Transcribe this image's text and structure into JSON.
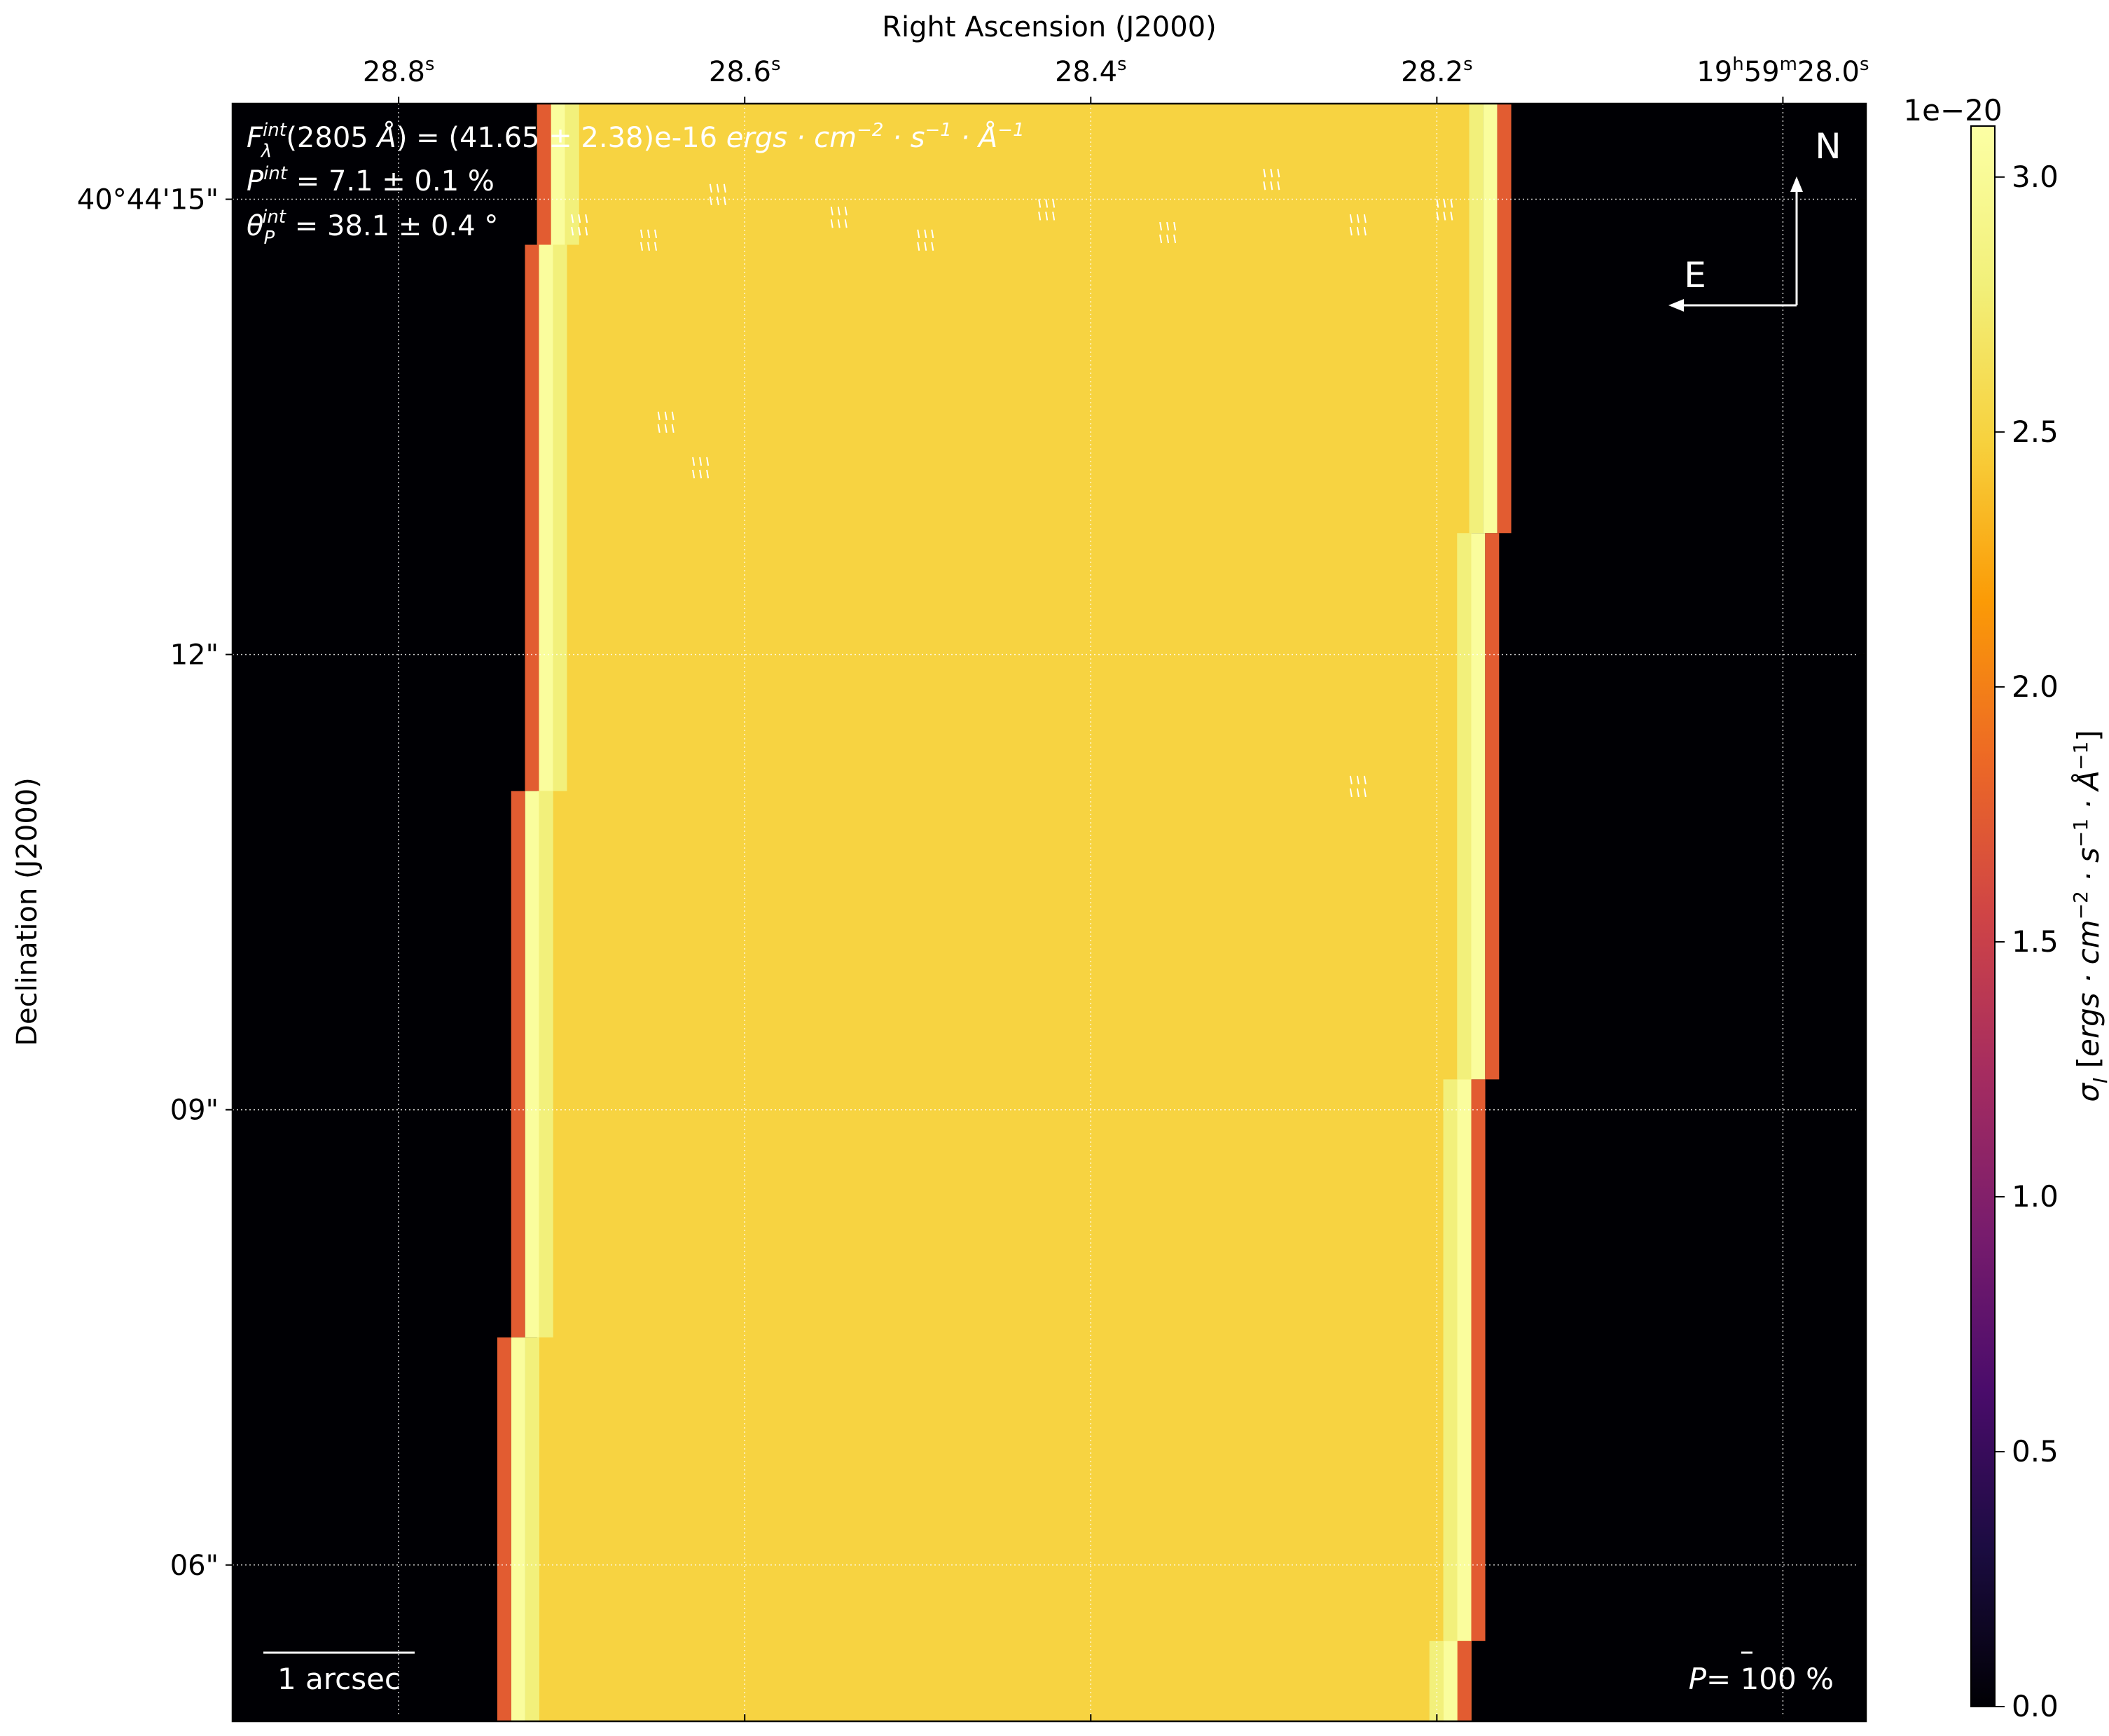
{
  "chart_data": {
    "type": "heatmap",
    "title": "",
    "xlabel": "Right Ascension (J2000)",
    "ylabel": "Declination (J2000)",
    "x_ticks": [
      {
        "value": 28.8,
        "label": "28.8",
        "sup": "s"
      },
      {
        "value": 28.6,
        "label": "28.6",
        "sup": "s"
      },
      {
        "value": 28.4,
        "label": "28.4",
        "sup": "s"
      },
      {
        "value": 28.2,
        "label": "28.2",
        "sup": "s"
      },
      {
        "value": 28.0,
        "label": "19h59m28.0s",
        "parts": [
          "19",
          "h",
          "59",
          "m",
          "28.0",
          "s"
        ]
      }
    ],
    "y_ticks": [
      {
        "value": 15,
        "label": "40°44'15\""
      },
      {
        "value": 12,
        "label": "12\""
      },
      {
        "value": 9,
        "label": "09\""
      },
      {
        "value": 6,
        "label": "06\""
      }
    ],
    "xlim": [
      28.896,
      27.952
    ],
    "ylim": [
      4.97,
      15.63
    ],
    "grid": true,
    "colormap": "inferno",
    "colorbar": {
      "label": "σ_I [ergs · cm^-2 · s^-1 · Å^-1]",
      "range": [
        0.0,
        3.1
      ],
      "scale_label": "1e−20",
      "ticks": [
        "0.0",
        "0.5",
        "1.0",
        "1.5",
        "2.0",
        "2.5",
        "3.0"
      ],
      "tick_values": [
        0.0,
        0.5,
        1.0,
        1.5,
        2.0,
        2.5,
        3.0
      ]
    },
    "map": {
      "background_value": 0.0,
      "interior_value": 2.5,
      "edge_high_value": 3.05,
      "edge_mid_value": 2.8,
      "edge_low_value": 1.75,
      "left_edge_steps": [
        {
          "dec": [
            14.7,
            15.63
          ],
          "ra": 28.72
        },
        {
          "dec": [
            11.1,
            14.7
          ],
          "ra": 28.727
        },
        {
          "dec": [
            7.5,
            11.1
          ],
          "ra": 28.735
        },
        {
          "dec": [
            4.97,
            7.5
          ],
          "ra": 28.743
        }
      ],
      "right_edge_steps": [
        {
          "dec": [
            12.8,
            15.63
          ],
          "ra": 28.157
        },
        {
          "dec": [
            9.2,
            12.8
          ],
          "ra": 28.164
        },
        {
          "dec": [
            5.5,
            9.2
          ],
          "ra": 28.172
        },
        {
          "dec": [
            4.97,
            5.5
          ],
          "ra": 28.18
        }
      ]
    },
    "annotations": {
      "flux_label": "F_λ^int(2805 Å) = (41.65 ± 2.38)e-16 ergs · cm^-2 · s^-1 · Å^-1",
      "pol_label": "P^int = 7.1 ± 0.1 %",
      "angle_label": "θ_P^int = 38.1 ± 0.4 °",
      "north_label": "N",
      "east_label": "E",
      "scalebar_label": "1 arcsec",
      "pol_scale_label": "P= 100 %"
    }
  }
}
